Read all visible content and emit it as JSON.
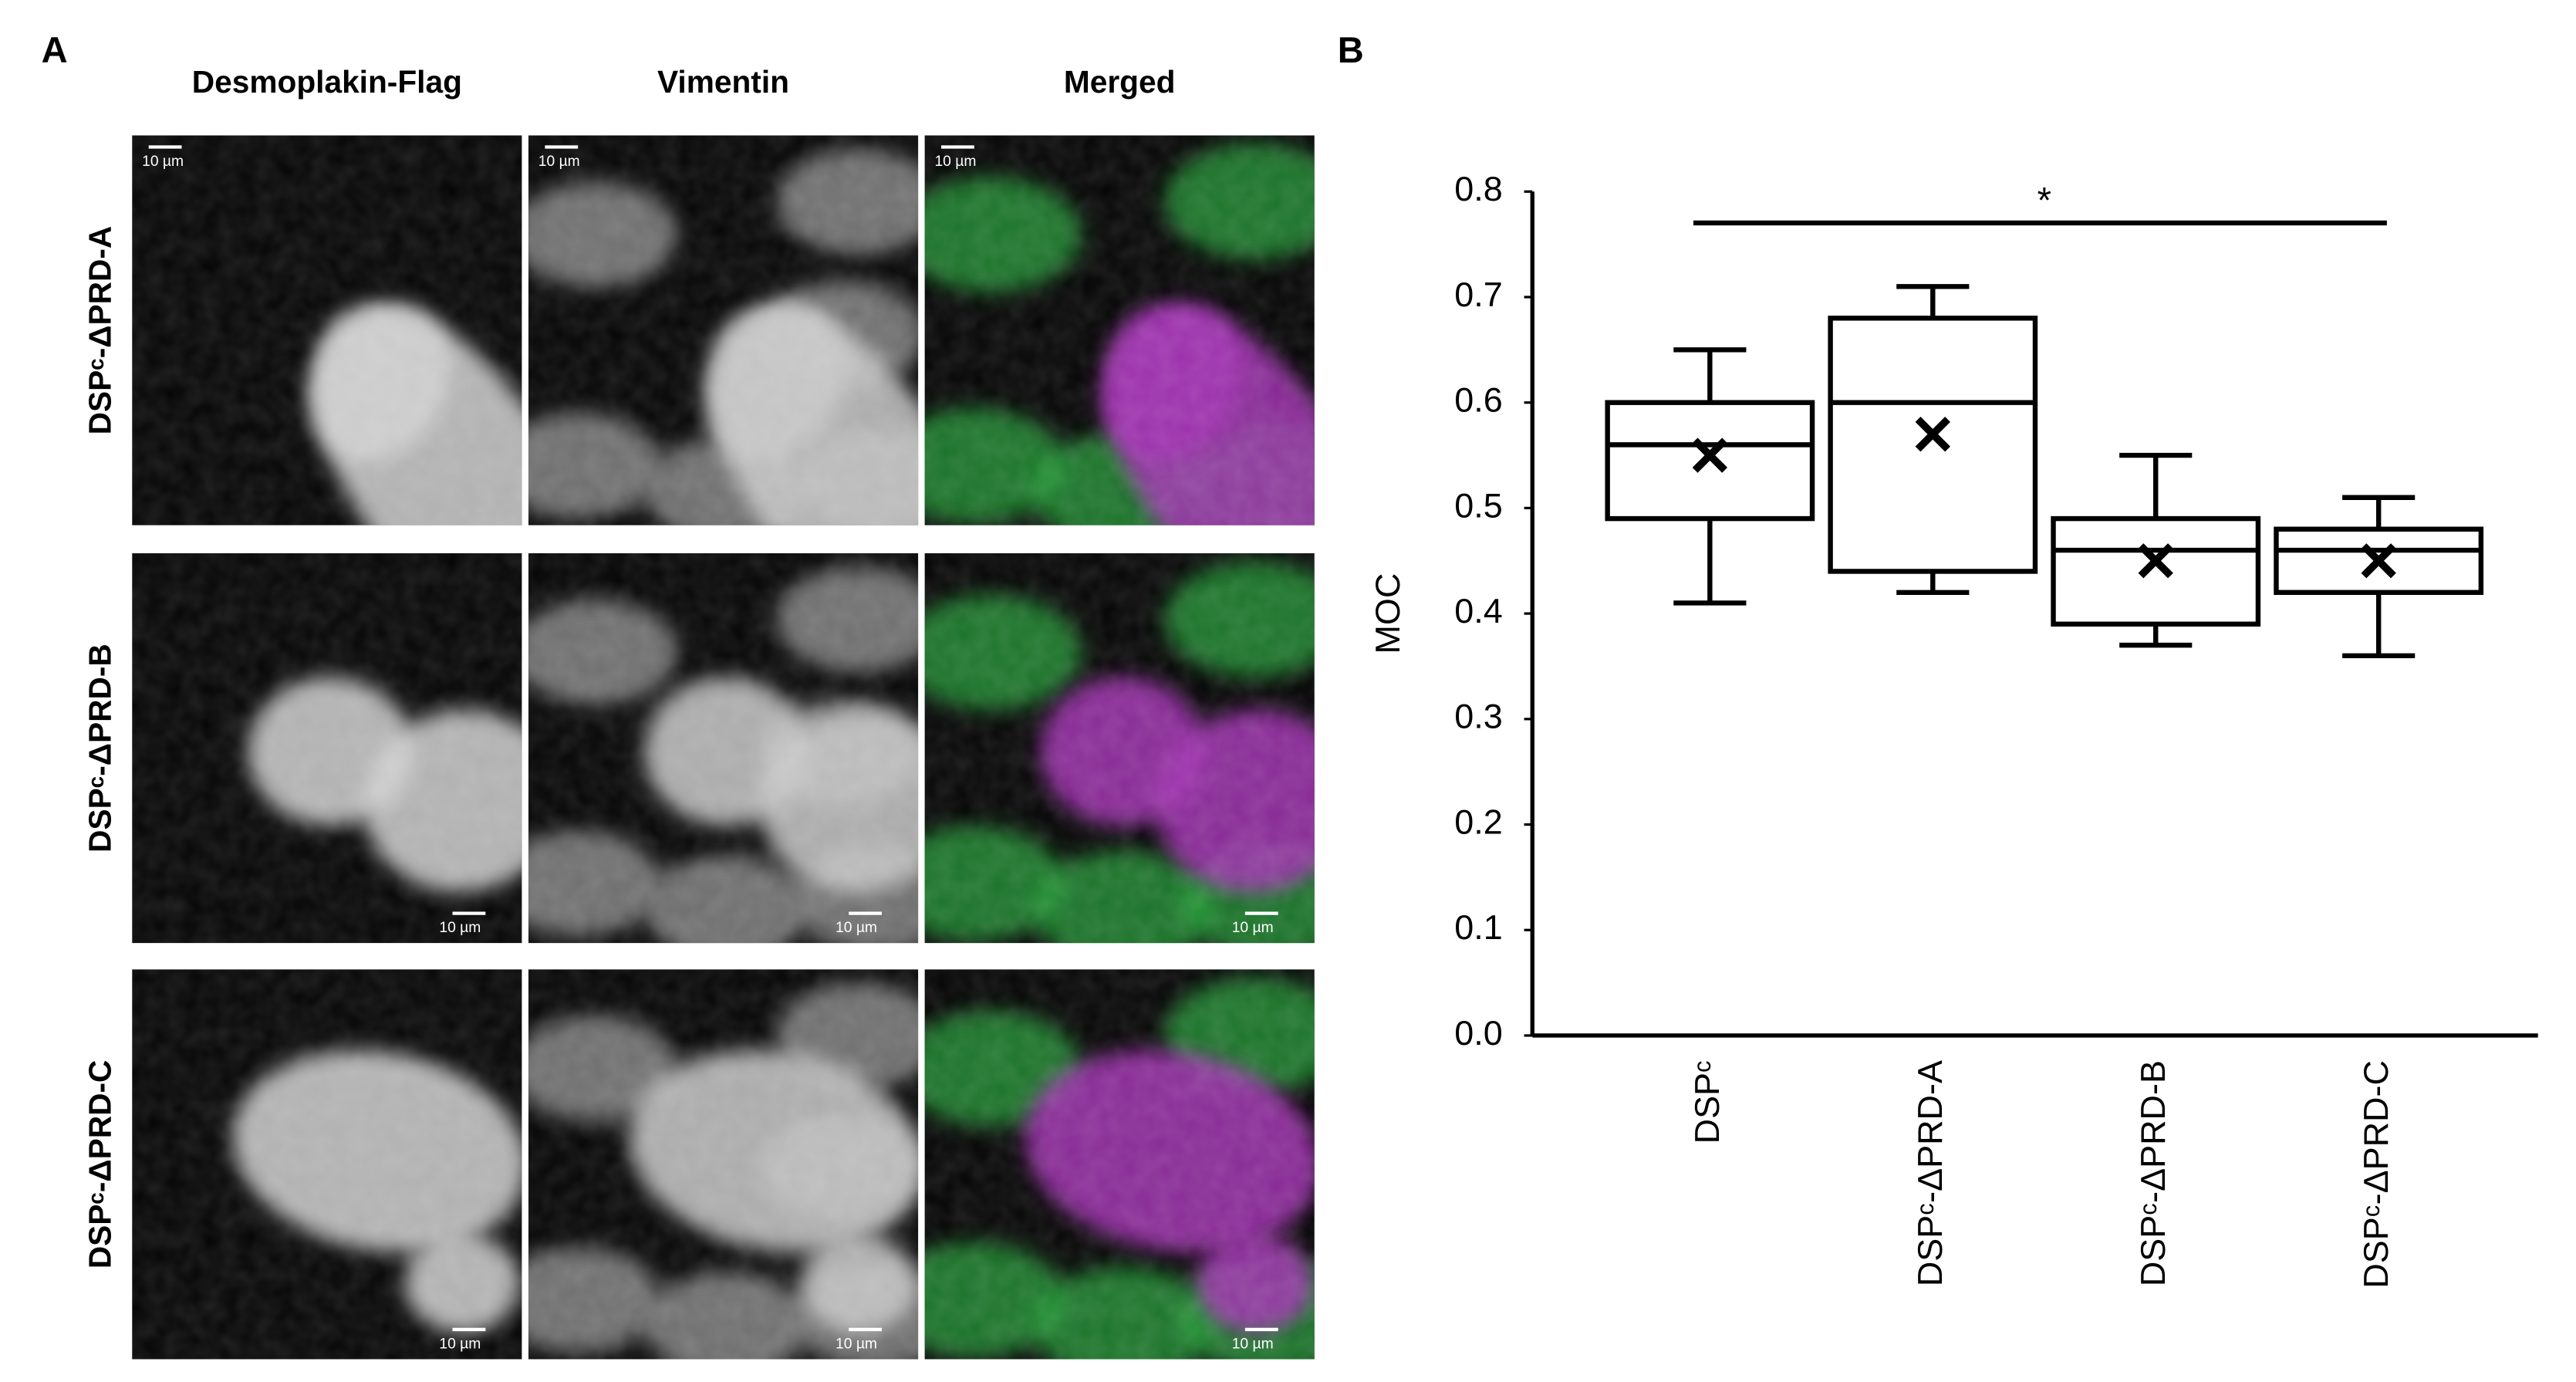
{
  "panel_a": {
    "label": "A",
    "columns": [
      "Desmoplakin-Flag",
      "Vimentin",
      "Merged"
    ],
    "rows": [
      "DSPᶜ-ΔPRD-A",
      "DSPᶜ-ΔPRD-B",
      "DSPᶜ-ΔPRD-C"
    ],
    "scale_bars": [
      "10 µm",
      "10 µm",
      "10 µm",
      "10 µm",
      "10 µm",
      "10 µm",
      "10 µm",
      "10 µm",
      "10 µm"
    ]
  },
  "chart_data": {
    "type": "box",
    "panel_label": "B",
    "y_label": "MOC",
    "categories": [
      "DSPᶜ",
      "DSPᶜ-ΔPRD-A",
      "DSPᶜ-ΔPRD-B",
      "DSPᶜ-ΔPRD-C"
    ],
    "min": [
      0.41,
      0.42,
      0.37,
      0.36
    ],
    "q1": [
      0.49,
      0.44,
      0.39,
      0.42
    ],
    "median": [
      0.56,
      0.6,
      0.46,
      0.46
    ],
    "q3": [
      0.6,
      0.68,
      0.49,
      0.48
    ],
    "max": [
      0.65,
      0.71,
      0.55,
      0.51
    ],
    "mean": [
      0.55,
      0.57,
      0.45,
      0.45
    ],
    "color": "#000000",
    "ylim": [
      0,
      0.8
    ],
    "yticks": [
      {
        "value": 0,
        "label": "0.0"
      },
      0.1,
      0.2,
      0.3,
      0.4,
      0.5,
      0.6,
      0.7,
      0.8
    ],
    "significance": {
      "label": "*",
      "between": [
        "DSPᶜ",
        "DSPᶜ-ΔPRD-C"
      ]
    }
  }
}
